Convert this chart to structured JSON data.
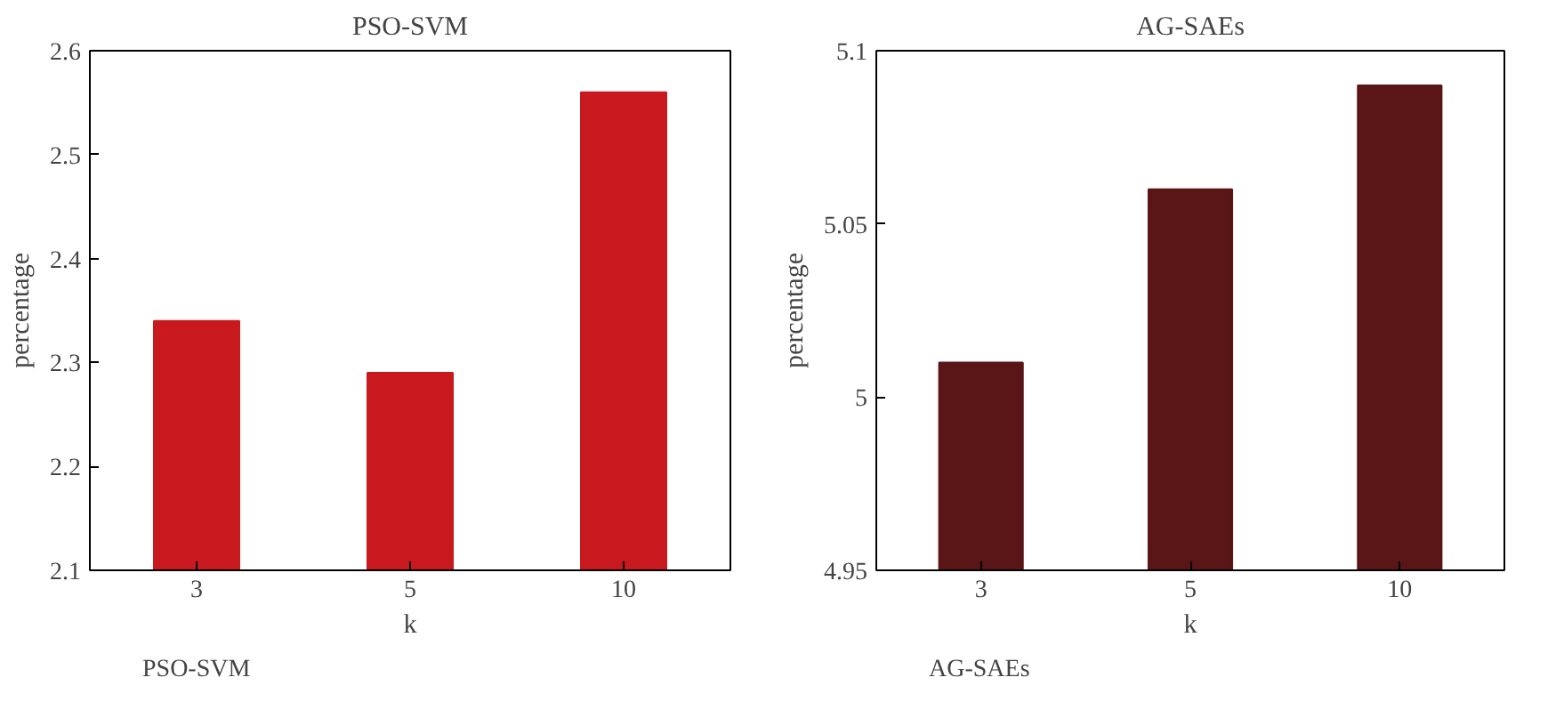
{
  "chart_data": [
    {
      "type": "bar",
      "title": "PSO-SVM",
      "xlabel": "k",
      "ylabel": "percentage",
      "categories": [
        "3",
        "5",
        "10"
      ],
      "series": [
        {
          "name": "PSO-SVM",
          "color": "#c8191f",
          "values": [
            2.34,
            2.29,
            2.56
          ]
        }
      ],
      "ylim": [
        2.1,
        2.6
      ],
      "yticks": [
        2.1,
        2.2,
        2.3,
        2.4,
        2.5,
        2.6
      ],
      "legend": "bottom"
    },
    {
      "type": "bar",
      "title": "AG-SAEs",
      "xlabel": "k",
      "ylabel": "percentage",
      "categories": [
        "3",
        "5",
        "10"
      ],
      "series": [
        {
          "name": "AG-SAEs",
          "color": "#5a1517",
          "values": [
            5.01,
            5.06,
            5.09
          ]
        }
      ],
      "ylim": [
        4.95,
        5.1
      ],
      "yticks": [
        4.95,
        {
          "value": 5,
          "label": "5"
        },
        5.05,
        {
          "value": 5.1,
          "label": "5.1"
        }
      ],
      "legend": "bottom"
    }
  ]
}
